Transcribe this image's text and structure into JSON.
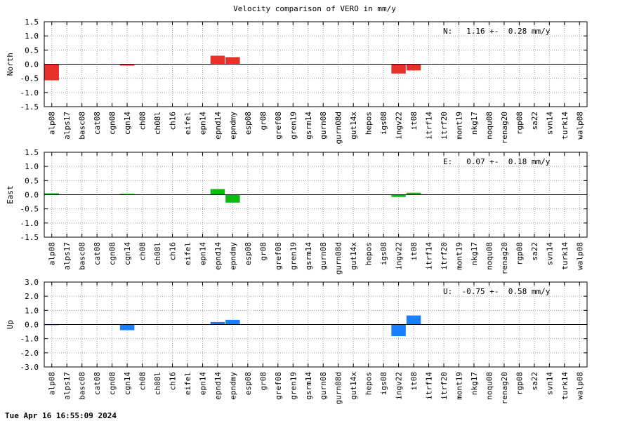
{
  "title": "Velocity comparison of VERO in mm/y",
  "timestamp": "Tue Apr 16 16:55:09 2024",
  "chart_data": [
    {
      "type": "bar",
      "ylabel": "North",
      "ylim": [
        -1.5,
        1.5
      ],
      "yticks": [
        "1.5",
        "1.0",
        "0.5",
        "0.0",
        "-0.5",
        "-1.0",
        "-1.5"
      ],
      "ytick_values": [
        1.5,
        1.0,
        0.5,
        0.0,
        -0.5,
        -1.0,
        -1.5
      ],
      "annotation": "N:   1.16 +-  0.28 mm/y",
      "color": "#e8302b",
      "grid": true,
      "categories": [
        "alp08",
        "alps17",
        "basc08",
        "cat08",
        "cgn08",
        "cgn14",
        "ch08",
        "ch08l",
        "ch16",
        "eifel",
        "epn14",
        "epnd14",
        "epndmy",
        "esp08",
        "gr08",
        "gref08",
        "gren19",
        "gsrm14",
        "gurn08",
        "gurn08d",
        "gut14x",
        "hepos",
        "igs08",
        "ingv22",
        "it08",
        "itrf14",
        "itrf20",
        "mont19",
        "nkg17",
        "noqu08",
        "renag20",
        "rgp08",
        "sa22",
        "svn14",
        "turk14",
        "walp08"
      ],
      "values": [
        -0.57,
        0,
        0,
        0,
        0,
        -0.05,
        0,
        0,
        0,
        0,
        0,
        0.3,
        0.25,
        0,
        0,
        0,
        0,
        0,
        0,
        0,
        0,
        0,
        0,
        -0.33,
        -0.22,
        0,
        0,
        0,
        0,
        0,
        0,
        0,
        0,
        0,
        0,
        0
      ]
    },
    {
      "type": "bar",
      "ylabel": "East",
      "ylim": [
        -1.5,
        1.5
      ],
      "yticks": [
        "1.5",
        "1.0",
        "0.5",
        "0.0",
        "-0.5",
        "-1.0",
        "-1.5"
      ],
      "ytick_values": [
        1.5,
        1.0,
        0.5,
        0.0,
        -0.5,
        -1.0,
        -1.5
      ],
      "annotation": "E:   0.07 +-  0.18 mm/y",
      "color": "#0fba0f",
      "grid": true,
      "categories": [
        "alp08",
        "alps17",
        "basc08",
        "cat08",
        "cgn08",
        "cgn14",
        "ch08",
        "ch08l",
        "ch16",
        "eifel",
        "epn14",
        "epnd14",
        "epndmy",
        "esp08",
        "gr08",
        "gref08",
        "gren19",
        "gsrm14",
        "gurn08",
        "gurn08d",
        "gut14x",
        "hepos",
        "igs08",
        "ingv22",
        "it08",
        "itrf14",
        "itrf20",
        "mont19",
        "nkg17",
        "noqu08",
        "renag20",
        "rgp08",
        "sa22",
        "svn14",
        "turk14",
        "walp08"
      ],
      "values": [
        0.05,
        0,
        0,
        0,
        0,
        0.03,
        0,
        0,
        0,
        0,
        0,
        0.2,
        -0.28,
        0,
        0,
        0,
        0,
        0,
        0,
        0,
        0,
        0,
        0,
        -0.08,
        0.07,
        0,
        0,
        0,
        0,
        0,
        0,
        0,
        0,
        0,
        0,
        0
      ]
    },
    {
      "type": "bar",
      "ylabel": "Up",
      "ylim": [
        -3.0,
        3.0
      ],
      "yticks": [
        "3.0",
        "2.0",
        "1.0",
        "0.0",
        "-1.0",
        "-2.0",
        "-3.0"
      ],
      "ytick_values": [
        3.0,
        2.0,
        1.0,
        0.0,
        -1.0,
        -2.0,
        -3.0
      ],
      "annotation": "U:  -0.75 +-  0.58 mm/y",
      "color": "#1a7fff",
      "grid": true,
      "categories": [
        "alp08",
        "alps17",
        "basc08",
        "cat08",
        "cgn08",
        "cgn14",
        "ch08",
        "ch08l",
        "ch16",
        "eifel",
        "epn14",
        "epnd14",
        "epndmy",
        "esp08",
        "gr08",
        "gref08",
        "gren19",
        "gsrm14",
        "gurn08",
        "gurn08d",
        "gut14x",
        "hepos",
        "igs08",
        "ingv22",
        "it08",
        "itrf14",
        "itrf20",
        "mont19",
        "nkg17",
        "noqu08",
        "renag20",
        "rgp08",
        "sa22",
        "svn14",
        "turk14",
        "walp08"
      ],
      "values": [
        0.03,
        0,
        0,
        0,
        0,
        -0.4,
        0,
        0,
        0,
        0,
        0,
        0.18,
        0.33,
        0,
        0,
        0,
        0,
        0,
        0,
        0,
        0,
        0,
        0,
        -0.82,
        0.64,
        0,
        0,
        0,
        0,
        0,
        0,
        0,
        0,
        0,
        0,
        0
      ]
    }
  ]
}
